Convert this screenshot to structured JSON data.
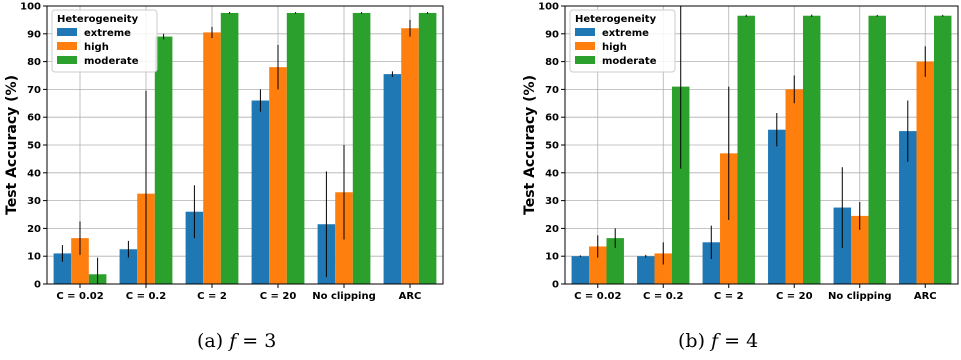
{
  "chart_data": [
    {
      "type": "bar",
      "ylabel": "Test Accuracy (%)",
      "xlabel": "",
      "ylim": [
        0,
        100
      ],
      "yticks": [
        0,
        10,
        20,
        30,
        40,
        50,
        60,
        70,
        80,
        90,
        100
      ],
      "grid": true,
      "categories": [
        "C = 0.02",
        "C = 0.2",
        "C = 2",
        "C = 20",
        "No clipping",
        "ARC"
      ],
      "legend": {
        "title": "Heterogeneity",
        "placement": "top-left"
      },
      "series": [
        {
          "name": "extreme",
          "color": "#1f77b4",
          "values": [
            11,
            12.5,
            26,
            66,
            21.5,
            75.5
          ],
          "errors": [
            3,
            3,
            9.5,
            4,
            19,
            1
          ]
        },
        {
          "name": "high",
          "color": "#ff7f0e",
          "values": [
            16.5,
            32.5,
            90.5,
            78,
            33,
            92
          ],
          "errors": [
            6,
            37,
            2,
            8,
            17,
            3
          ]
        },
        {
          "name": "moderate",
          "color": "#2ca02c",
          "values": [
            3.5,
            89,
            97.5,
            97.5,
            97.5,
            97.5
          ],
          "errors": [
            6,
            1,
            0.3,
            0.3,
            0.3,
            0.3
          ]
        }
      ],
      "caption_label": "(a)",
      "caption_var": "f",
      "caption_rest": " = 3"
    },
    {
      "type": "bar",
      "ylabel": "Test Accuracy (%)",
      "xlabel": "",
      "ylim": [
        0,
        100
      ],
      "yticks": [
        0,
        10,
        20,
        30,
        40,
        50,
        60,
        70,
        80,
        90,
        100
      ],
      "grid": true,
      "categories": [
        "C = 0.02",
        "C = 0.2",
        "C = 2",
        "C = 20",
        "No clipping",
        "ARC"
      ],
      "legend": {
        "title": "Heterogeneity",
        "placement": "top-left"
      },
      "series": [
        {
          "name": "extreme",
          "color": "#1f77b4",
          "values": [
            10,
            10,
            15,
            55.5,
            27.5,
            55
          ],
          "errors": [
            0.3,
            0.5,
            6,
            6,
            14.5,
            11
          ]
        },
        {
          "name": "high",
          "color": "#ff7f0e",
          "values": [
            13.5,
            11,
            47,
            70,
            24.5,
            80
          ],
          "errors": [
            4,
            4,
            24,
            5,
            5,
            5.5
          ]
        },
        {
          "name": "moderate",
          "color": "#2ca02c",
          "values": [
            16.5,
            71,
            96.5,
            96.5,
            96.5,
            96.5
          ],
          "errors": [
            3.5,
            29.5,
            0.4,
            0.4,
            0.3,
            0.3
          ]
        }
      ],
      "caption_label": "(b)",
      "caption_var": "f",
      "caption_rest": " = 4"
    }
  ]
}
